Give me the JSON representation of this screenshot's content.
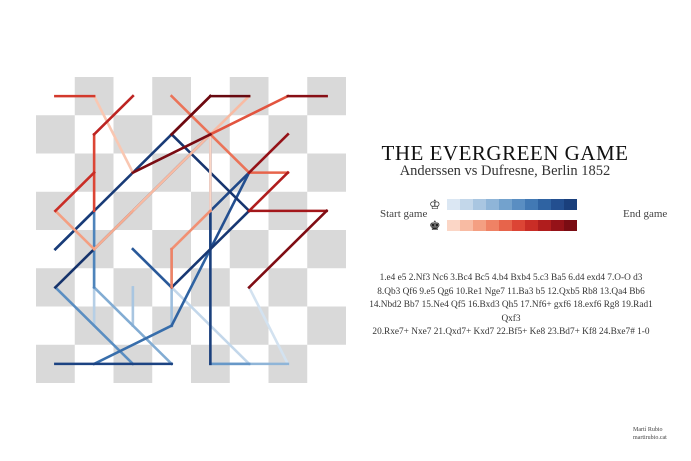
{
  "title": "THE EVERGREEN GAME",
  "subtitle": "Anderssen vs Dufresne, Berlin 1852",
  "legend": {
    "start_label": "Start game",
    "end_label": "End game",
    "white_king_icon": "white-king-icon",
    "black_king_icon": "black-king-icon",
    "white_ramp": [
      "#dbe7f3",
      "#c3d7ea",
      "#a9c6e1",
      "#8fb5d8",
      "#73a2cd",
      "#5a8ec2",
      "#4279b4",
      "#2f63a2",
      "#234f90",
      "#1a3f7c"
    ],
    "black_ramp": [
      "#fbd6c6",
      "#f8bba3",
      "#f49f82",
      "#ef8265",
      "#e7644b",
      "#dc4535",
      "#c92d26",
      "#b01d1d",
      "#951218",
      "#7a0c13"
    ]
  },
  "moves": {
    "line1": "1.e4 e5 2.Nf3 Nc6 3.Bc4 Bc5 4.b4 Bxb4 5.c3 Ba5 6.d4 exd4 7.O-O d3",
    "line2": "8.Qb3 Qf6 9.e5 Qg6 10.Re1 Nge7 11.Ba3 b5 12.Qxb5 Rb8 13.Qa4 Bb6",
    "line3": "14.Nbd2 Bb7 15.Ne4 Qf5 16.Bxd3 Qh5 17.Nf6+ gxf6 18.exf6 Rg8 19.Rad1 Qxf3",
    "line4": "20.Rxe7+ Nxe7 21.Qxd7+ Kxd7 22.Bf5+ Ke8 23.Bd7+ Kf8 24.Bxe7# 1-0"
  },
  "credit": {
    "name": "Martí Rubio",
    "url": "martirubio.cat"
  },
  "board": {
    "light": "#ffffff",
    "dark": "#d9d9d9",
    "white_moves": [
      {
        "from": "e2",
        "to": "e4",
        "color": "#dbe7f3"
      },
      {
        "from": "g1",
        "to": "f3",
        "color": "#d3e2f0"
      },
      {
        "from": "f1",
        "to": "c4",
        "color": "#c3d7ea"
      },
      {
        "from": "b2",
        "to": "b4",
        "color": "#b6cfe6"
      },
      {
        "from": "c2",
        "to": "c3",
        "color": "#a9c6e1"
      },
      {
        "from": "d2",
        "to": "d4",
        "color": "#9dbedd"
      },
      {
        "from": "e1",
        "to": "g1",
        "color": "#8fb5d8"
      },
      {
        "from": "d1",
        "to": "b3",
        "color": "#82acd3"
      },
      {
        "from": "e4",
        "to": "e5",
        "color": "#73a2cd"
      },
      {
        "from": "f1",
        "to": "e1",
        "color": "#6798c8"
      },
      {
        "from": "c1",
        "to": "a3",
        "color": "#5a8ec2"
      },
      {
        "from": "b3",
        "to": "b5",
        "color": "#4e84bb"
      },
      {
        "from": "b5",
        "to": "a4",
        "color": "#4279b4"
      },
      {
        "from": "b1",
        "to": "d2",
        "color": "#386eab"
      },
      {
        "from": "d2",
        "to": "e4",
        "color": "#2f63a2"
      },
      {
        "from": "c4",
        "to": "d3",
        "color": "#2a5999"
      },
      {
        "from": "e4",
        "to": "f6",
        "color": "#234f90"
      },
      {
        "from": "e5",
        "to": "f6",
        "color": "#1f4888"
      },
      {
        "from": "a1",
        "to": "d1",
        "color": "#1c4382"
      },
      {
        "from": "e1",
        "to": "e7",
        "color": "#1a3f7c"
      },
      {
        "from": "a4",
        "to": "d7",
        "color": "#193b77"
      },
      {
        "from": "d3",
        "to": "f5",
        "color": "#183873"
      },
      {
        "from": "f5",
        "to": "d7",
        "color": "#17356f"
      },
      {
        "from": "a3",
        "to": "e7",
        "color": "#16336b"
      }
    ],
    "black_moves": [
      {
        "from": "e7",
        "to": "e5",
        "color": "#fbd6c6"
      },
      {
        "from": "b8",
        "to": "c6",
        "color": "#f9c7b2"
      },
      {
        "from": "f8",
        "to": "c5",
        "color": "#f8bba3"
      },
      {
        "from": "c5",
        "to": "b4",
        "color": "#f6ad92"
      },
      {
        "from": "b4",
        "to": "a5",
        "color": "#f49f82"
      },
      {
        "from": "e5",
        "to": "d4",
        "color": "#f19073"
      },
      {
        "from": "d4",
        "to": "d3",
        "color": "#ef8265"
      },
      {
        "from": "d8",
        "to": "f6",
        "color": "#eb7358"
      },
      {
        "from": "f6",
        "to": "g6",
        "color": "#e7644b"
      },
      {
        "from": "g8",
        "to": "e7",
        "color": "#e2543f"
      },
      {
        "from": "b7",
        "to": "b5",
        "color": "#dc4535"
      },
      {
        "from": "a8",
        "to": "b8",
        "color": "#d3392c"
      },
      {
        "from": "a5",
        "to": "b6",
        "color": "#c92d26"
      },
      {
        "from": "c8",
        "to": "b7",
        "color": "#bd2422"
      },
      {
        "from": "g6",
        "to": "f5",
        "color": "#b01d1d"
      },
      {
        "from": "f5",
        "to": "h5",
        "color": "#a3171a"
      },
      {
        "from": "g7",
        "to": "f6",
        "color": "#951218"
      },
      {
        "from": "h8",
        "to": "g8",
        "color": "#880f16"
      },
      {
        "from": "h5",
        "to": "f3",
        "color": "#7f0d14"
      },
      {
        "from": "c6",
        "to": "e7",
        "color": "#7a0c13"
      },
      {
        "from": "e8",
        "to": "d7",
        "color": "#740b12"
      },
      {
        "from": "d7",
        "to": "e8",
        "color": "#6e0a11"
      },
      {
        "from": "e8",
        "to": "f8",
        "color": "#680910"
      }
    ]
  }
}
